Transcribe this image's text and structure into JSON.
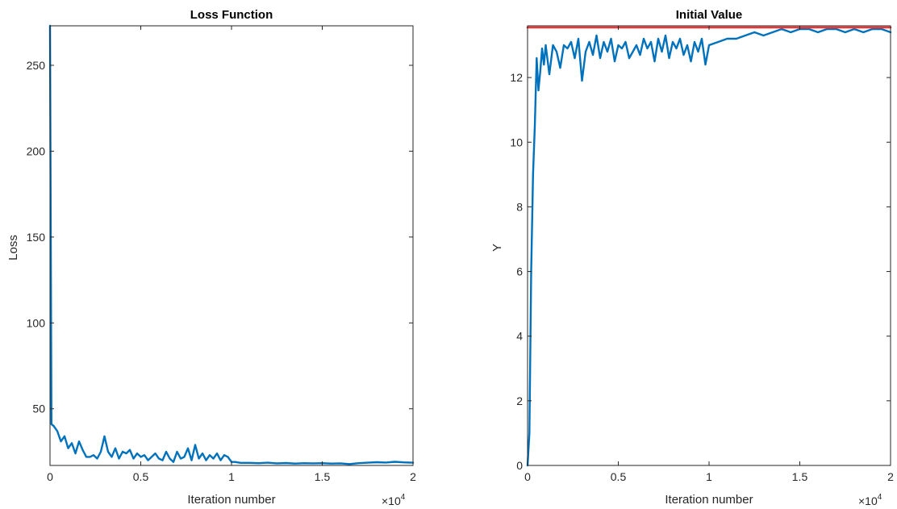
{
  "chart_data": [
    {
      "type": "line",
      "title": "Loss Function",
      "xlabel": "Iteration number",
      "ylabel": "Loss",
      "x_exponent_label": "×10",
      "x_exponent_power": "4",
      "xlim": [
        0,
        20000
      ],
      "ylim": [
        17,
        273
      ],
      "xticks": [
        0,
        5000,
        10000,
        15000,
        20000
      ],
      "xtick_labels": [
        "0",
        "0.5",
        "1",
        "1.5",
        "2"
      ],
      "yticks": [
        50,
        100,
        150,
        200,
        250
      ],
      "ytick_labels": [
        "50",
        "100",
        "150",
        "200",
        "250"
      ],
      "grid": false,
      "series": [
        {
          "color": "#0072BD",
          "x": [
            0,
            80,
            200,
            400,
            600,
            800,
            1000,
            1200,
            1400,
            1600,
            1800,
            2000,
            2200,
            2400,
            2600,
            2800,
            3000,
            3200,
            3400,
            3600,
            3800,
            4000,
            4200,
            4400,
            4600,
            4800,
            5000,
            5200,
            5400,
            5600,
            5800,
            6000,
            6200,
            6400,
            6600,
            6800,
            7000,
            7200,
            7400,
            7600,
            7800,
            8000,
            8200,
            8400,
            8600,
            8800,
            9000,
            9200,
            9400,
            9600,
            9800,
            10000,
            10200,
            10500,
            11000,
            11500,
            12000,
            12500,
            13000,
            13500,
            14000,
            14500,
            15000,
            15500,
            16000,
            16500,
            17000,
            17500,
            18000,
            18500,
            19000,
            19500,
            20000
          ],
          "y": [
            273,
            41,
            40,
            37,
            31,
            34,
            27,
            30,
            24,
            31,
            26,
            22,
            22,
            23,
            21,
            25,
            34,
            25,
            22,
            27,
            21,
            25,
            24,
            26,
            21,
            24,
            22,
            23,
            20,
            22,
            24,
            21,
            20,
            25,
            21,
            19,
            25,
            21,
            22,
            27,
            20,
            29,
            21,
            24,
            20,
            23,
            21,
            24,
            20,
            23,
            22,
            19,
            19,
            18.5,
            18.5,
            18.3,
            18.6,
            18.2,
            18.4,
            18.1,
            18.3,
            18.2,
            18.3,
            18.1,
            18.2,
            17.8,
            18.3,
            18.6,
            18.9,
            18.7,
            19.1,
            18.8,
            18.6
          ]
        }
      ]
    },
    {
      "type": "line",
      "title": "Initial Value",
      "xlabel": "Iteration number",
      "ylabel": "Y",
      "x_exponent_label": "×10",
      "x_exponent_power": "4",
      "xlim": [
        0,
        20000
      ],
      "ylim": [
        0,
        13.6
      ],
      "xticks": [
        0,
        5000,
        10000,
        15000,
        20000
      ],
      "xtick_labels": [
        "0",
        "0.5",
        "1",
        "1.5",
        "2"
      ],
      "yticks": [
        0,
        2,
        4,
        6,
        8,
        10,
        12
      ],
      "ytick_labels": [
        "0",
        "2",
        "4",
        "6",
        "8",
        "10",
        "12"
      ],
      "grid": false,
      "series": [
        {
          "color": "#0072BD",
          "x": [
            0,
            100,
            200,
            300,
            400,
            500,
            600,
            700,
            800,
            900,
            1000,
            1200,
            1400,
            1600,
            1800,
            2000,
            2200,
            2400,
            2600,
            2800,
            3000,
            3200,
            3400,
            3600,
            3800,
            4000,
            4200,
            4400,
            4600,
            4800,
            5000,
            5200,
            5400,
            5600,
            5800,
            6000,
            6200,
            6400,
            6600,
            6800,
            7000,
            7200,
            7400,
            7600,
            7800,
            8000,
            8200,
            8400,
            8600,
            8800,
            9000,
            9200,
            9400,
            9600,
            9800,
            10000,
            10500,
            11000,
            11500,
            12000,
            12500,
            13000,
            13500,
            14000,
            14500,
            15000,
            15500,
            16000,
            16500,
            17000,
            17500,
            18000,
            18500,
            19000,
            19500,
            20000
          ],
          "y": [
            0,
            1,
            6,
            9,
            10.5,
            12.6,
            11.6,
            12.2,
            12.9,
            12.4,
            13,
            12.1,
            13,
            12.8,
            12.3,
            13,
            12.9,
            13.1,
            12.6,
            13.2,
            11.9,
            12.8,
            13.1,
            12.7,
            13.3,
            12.6,
            13.1,
            12.8,
            13.2,
            12.5,
            13,
            12.9,
            13.1,
            12.6,
            12.8,
            13,
            12.7,
            13.2,
            12.9,
            13.1,
            12.5,
            13.2,
            12.8,
            13.3,
            12.6,
            13.1,
            12.9,
            13.2,
            12.7,
            13,
            12.5,
            13.1,
            12.8,
            13.2,
            12.4,
            13,
            13.1,
            13.2,
            13.2,
            13.3,
            13.4,
            13.3,
            13.4,
            13.5,
            13.4,
            13.5,
            13.5,
            13.4,
            13.5,
            13.5,
            13.4,
            13.5,
            13.4,
            13.5,
            13.5,
            13.4
          ]
        },
        {
          "color": "#EE3333",
          "x": [
            0,
            20000
          ],
          "y": [
            13.55,
            13.55
          ]
        }
      ]
    }
  ]
}
